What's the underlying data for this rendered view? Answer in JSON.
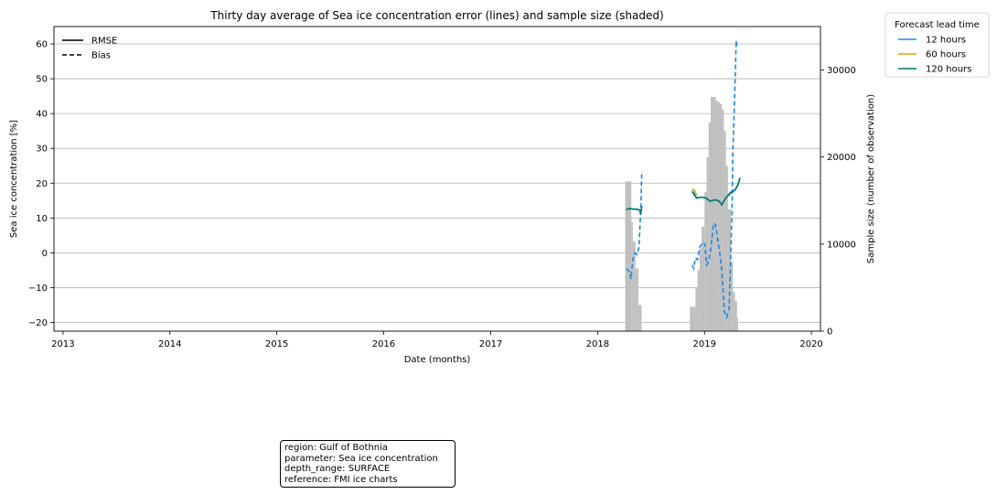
{
  "chart_data": {
    "type": "line",
    "title": "Thirty day average of Sea ice concentration error (lines) and sample size (shaded)",
    "xlabel": "Date (months)",
    "ylabel": "Sea ice concentration [%]",
    "y2label": "Sample size (number of observation)",
    "xlim": [
      "2012-12-01",
      "2020-02-01"
    ],
    "ylim": [
      -22.5,
      65
    ],
    "y2lim": [
      0,
      35000
    ],
    "x_ticks": [
      "2013",
      "2014",
      "2015",
      "2016",
      "2017",
      "2018",
      "2019",
      "2020"
    ],
    "y_ticks": [
      -20,
      -10,
      0,
      10,
      20,
      30,
      40,
      50,
      60
    ],
    "y2_ticks": [
      0,
      10000,
      20000,
      30000
    ],
    "grid": "horizontal",
    "style_legend": {
      "entries": [
        {
          "label": "RMSE",
          "dash": "solid"
        },
        {
          "label": "Bias",
          "dash": "dashed"
        }
      ],
      "placement": "upper-left"
    },
    "legend": {
      "title": "Forecast lead time",
      "placement": "outside-top-right"
    },
    "series": [
      {
        "name": "12 hours",
        "color": "#1f88e5",
        "rmse": [
          [
            "2018-04-10",
            12.5
          ],
          [
            "2018-04-20",
            12.7
          ],
          [
            "2018-05-01",
            12.6
          ],
          [
            "2018-05-15",
            12.5
          ],
          [
            "2018-05-28",
            12.3
          ],
          [
            "2018-11-20",
            17.8
          ],
          [
            "2018-12-05",
            15.8
          ],
          [
            "2018-12-20",
            16.0
          ],
          [
            "2019-01-05",
            15.8
          ],
          [
            "2019-01-20",
            14.8
          ],
          [
            "2019-02-05",
            15.2
          ],
          [
            "2019-02-20",
            14.9
          ],
          [
            "2019-03-01",
            13.8
          ],
          [
            "2019-03-15",
            15.8
          ],
          [
            "2019-04-01",
            17.5
          ],
          [
            "2019-04-15",
            18.0
          ],
          [
            "2019-04-25",
            19.5
          ],
          [
            "2019-05-02",
            21.5
          ]
        ],
        "bias": [
          [
            "2018-04-10",
            -4.5
          ],
          [
            "2018-04-20",
            -5.5
          ],
          [
            "2018-04-25",
            -7.5
          ],
          [
            "2018-05-01",
            -2.0
          ],
          [
            "2018-05-08",
            0.0
          ],
          [
            "2018-05-15",
            -0.5
          ],
          [
            "2018-05-22",
            1.5
          ],
          [
            "2018-05-28",
            12.0
          ],
          [
            "2018-06-01",
            23.5
          ],
          [
            "2018-11-20",
            -3.5
          ],
          [
            "2018-11-25",
            -4.5
          ],
          [
            "2018-12-01",
            -1.5
          ],
          [
            "2018-12-08",
            -2.0
          ],
          [
            "2018-12-15",
            1.5
          ],
          [
            "2018-12-25",
            3.0
          ],
          [
            "2019-01-02",
            2.5
          ],
          [
            "2019-01-08",
            -3.5
          ],
          [
            "2019-01-15",
            -2.5
          ],
          [
            "2019-01-22",
            1.0
          ],
          [
            "2019-02-01",
            8.5
          ],
          [
            "2019-02-08",
            8.0
          ],
          [
            "2019-02-15",
            4.0
          ],
          [
            "2019-02-22",
            0.0
          ],
          [
            "2019-03-01",
            -5.0
          ],
          [
            "2019-03-10",
            -17.0
          ],
          [
            "2019-03-18",
            -18.5
          ],
          [
            "2019-03-26",
            -16.0
          ],
          [
            "2019-04-01",
            0.5
          ],
          [
            "2019-04-05",
            12.0
          ],
          [
            "2019-04-08",
            30.0
          ],
          [
            "2019-04-12",
            40.0
          ],
          [
            "2019-04-17",
            54.0
          ],
          [
            "2019-04-19",
            61.0
          ],
          [
            "2019-04-22",
            59.0
          ]
        ]
      },
      {
        "name": "60 hours",
        "color": "#e69f00",
        "rmse": [
          [
            "2018-11-20",
            18.3
          ],
          [
            "2018-11-28",
            17.9
          ],
          [
            "2018-12-05",
            16.5
          ]
        ],
        "bias": []
      },
      {
        "name": "120 hours",
        "color": "#00796b",
        "rmse": [
          [
            "2018-04-08",
            12.4
          ],
          [
            "2018-04-20",
            12.7
          ],
          [
            "2018-05-01",
            12.6
          ],
          [
            "2018-05-15",
            12.5
          ],
          [
            "2018-05-25",
            12.3
          ],
          [
            "2018-05-28",
            11.0
          ],
          [
            "2018-06-01",
            13.5
          ],
          [
            "2018-11-20",
            17.5
          ],
          [
            "2018-12-05",
            15.7
          ],
          [
            "2018-12-20",
            16.0
          ],
          [
            "2019-01-05",
            15.8
          ],
          [
            "2019-01-20",
            14.8
          ],
          [
            "2019-02-05",
            15.2
          ],
          [
            "2019-02-20",
            14.9
          ],
          [
            "2019-03-01",
            13.8
          ],
          [
            "2019-03-15",
            15.8
          ],
          [
            "2019-04-01",
            17.2
          ],
          [
            "2019-04-15",
            18.0
          ],
          [
            "2019-04-25",
            19.5
          ],
          [
            "2019-05-02",
            21.5
          ]
        ],
        "bias": []
      }
    ],
    "sample_size": {
      "color": "#bfbfbf",
      "values": [
        [
          "2018-04-03",
          0
        ],
        [
          "2018-04-05",
          17200
        ],
        [
          "2018-04-22",
          17200
        ],
        [
          "2018-04-26",
          12500
        ],
        [
          "2018-05-01",
          10300
        ],
        [
          "2018-05-06",
          10300
        ],
        [
          "2018-05-10",
          7200
        ],
        [
          "2018-05-15",
          7200
        ],
        [
          "2018-05-20",
          3000
        ],
        [
          "2018-05-28",
          3000
        ],
        [
          "2018-05-31",
          0
        ],
        [
          "2018-11-10",
          0
        ],
        [
          "2018-11-12",
          2800
        ],
        [
          "2018-11-25",
          2800
        ],
        [
          "2018-12-01",
          5000
        ],
        [
          "2018-12-08",
          7000
        ],
        [
          "2018-12-15",
          9500
        ],
        [
          "2018-12-22",
          12000
        ],
        [
          "2019-01-01",
          16000
        ],
        [
          "2019-01-08",
          20000
        ],
        [
          "2019-01-15",
          24000
        ],
        [
          "2019-01-22",
          26900
        ],
        [
          "2019-02-01",
          26900
        ],
        [
          "2019-02-08",
          26500
        ],
        [
          "2019-02-15",
          26300
        ],
        [
          "2019-02-22",
          26100
        ],
        [
          "2019-03-01",
          25500
        ],
        [
          "2019-03-08",
          23000
        ],
        [
          "2019-03-15",
          19000
        ],
        [
          "2019-03-22",
          14000
        ],
        [
          "2019-04-01",
          8000
        ],
        [
          "2019-04-08",
          4500
        ],
        [
          "2019-04-15",
          3500
        ],
        [
          "2019-04-22",
          1500
        ],
        [
          "2019-04-26",
          0
        ]
      ]
    }
  },
  "info_box": {
    "region": "region: Gulf of Bothnia",
    "parameter": "parameter: Sea ice concentration",
    "depth_range": "depth_range: SURFACE",
    "reference": "reference: FMI ice charts"
  }
}
